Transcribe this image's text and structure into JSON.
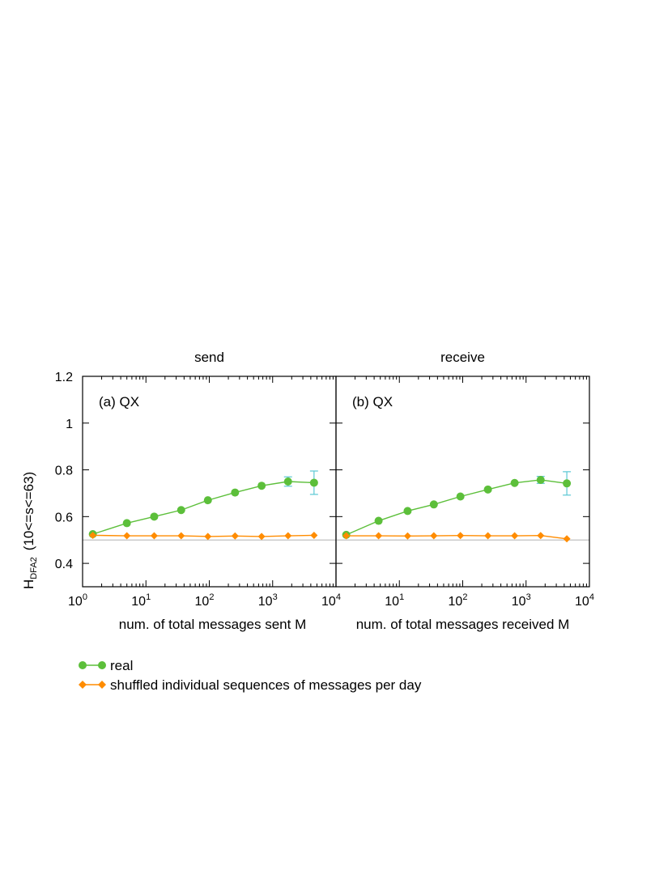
{
  "colors": {
    "real": "#5cbf3a",
    "shuffled": "#ff8c00",
    "error_bar": "#5bc8d4",
    "reference_line": "#c0c0c0"
  },
  "ylabel": "H",
  "ylabel_sub": "DFA2",
  "ylabel_suffix": "(10<=s<=63)",
  "legend": {
    "placement": "bottom-left",
    "real": "real",
    "shuffled": "shuffled individual sequences of messages per day"
  },
  "chart_data": [
    {
      "type": "line",
      "title": "send",
      "annotation": "(a) QX",
      "xlabel": "num. of total messages sent M",
      "xscale": "log",
      "xlim": [
        1,
        10000
      ],
      "ylim": [
        0.3,
        1.2
      ],
      "xtick_labels": [
        {
          "base": "10",
          "exp": "0"
        },
        {
          "base": "10",
          "exp": "1"
        },
        {
          "base": "10",
          "exp": "2"
        },
        {
          "base": "10",
          "exp": "3"
        },
        {
          "base": "10",
          "exp": "4"
        }
      ],
      "ytick_labels": [
        "0.4",
        "0.6",
        "0.8",
        "1",
        "1.2"
      ],
      "reference_y": 0.5,
      "series": [
        {
          "name": "real",
          "x": [
            1.45,
            5.0,
            13.5,
            36,
            95,
            255,
            670,
            1750,
            4500
          ],
          "y": [
            0.525,
            0.572,
            0.6,
            0.628,
            0.67,
            0.703,
            0.732,
            0.75,
            0.745
          ],
          "err": [
            0,
            0,
            0,
            0,
            0,
            0,
            0,
            0.02,
            0.05
          ]
        },
        {
          "name": "shuffled individual sequences of messages per day",
          "x": [
            1.45,
            5.0,
            13.5,
            36,
            95,
            255,
            670,
            1750,
            4500
          ],
          "y": [
            0.52,
            0.518,
            0.518,
            0.518,
            0.515,
            0.517,
            0.515,
            0.518,
            0.52
          ]
        }
      ]
    },
    {
      "type": "line",
      "title": "receive",
      "annotation": "(b) QX",
      "xlabel": "num. of total messages received M",
      "xscale": "log",
      "xlim": [
        1,
        10000
      ],
      "ylim": [
        0.3,
        1.2
      ],
      "xtick_labels": [
        {
          "base": "10",
          "exp": "1"
        },
        {
          "base": "10",
          "exp": "2"
        },
        {
          "base": "10",
          "exp": "3"
        },
        {
          "base": "10",
          "exp": "4"
        }
      ],
      "ytick_labels": [],
      "reference_y": 0.5,
      "series": [
        {
          "name": "real",
          "x": [
            1.45,
            4.7,
            13.5,
            35,
            92,
            250,
            660,
            1700,
            4400
          ],
          "y": [
            0.522,
            0.582,
            0.624,
            0.652,
            0.686,
            0.716,
            0.744,
            0.757,
            0.742
          ],
          "err": [
            0,
            0,
            0,
            0,
            0,
            0,
            0,
            0.015,
            0.05
          ]
        },
        {
          "name": "shuffled individual sequences of messages per day",
          "x": [
            1.45,
            4.7,
            13.5,
            35,
            92,
            250,
            660,
            1700,
            4400
          ],
          "y": [
            0.518,
            0.518,
            0.517,
            0.518,
            0.519,
            0.518,
            0.518,
            0.519,
            0.505
          ]
        }
      ]
    }
  ]
}
